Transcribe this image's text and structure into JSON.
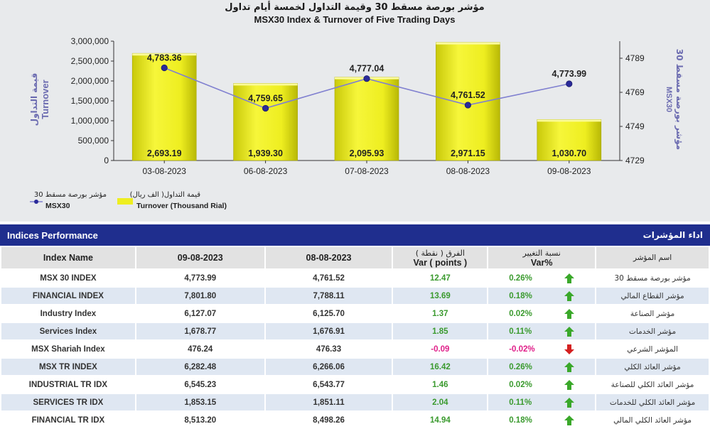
{
  "chart_data": {
    "type": "bar",
    "title_ar": "مؤشر بورصة مسقط 30 وقيمة التداول لخمسة أيام تداول",
    "title": "MSX30 Index & Turnover of Five Trading Days",
    "categories": [
      "03-08-2023",
      "06-08-2023",
      "07-08-2023",
      "08-08-2023",
      "09-08-2023"
    ],
    "series": [
      {
        "name": "Turnover (Thousand Rial)",
        "name_ar": "قيمة التداول( الف ريال)",
        "type": "bar",
        "axis": "left",
        "color": "#eeee20",
        "values": [
          2693.19,
          1939.3,
          2095.93,
          2971.15,
          1030.7
        ],
        "labels": [
          "2,693.19",
          "1,939.30",
          "2,095.93",
          "2,971.15",
          "1,030.70"
        ]
      },
      {
        "name": "MSX30",
        "name_ar": "مؤشر بورصة مسقط 30",
        "type": "line",
        "axis": "right",
        "color": "#8080d0",
        "values": [
          4783.36,
          4759.65,
          4777.04,
          4761.52,
          4773.99
        ],
        "labels": [
          "4,783.36",
          "4,759.65",
          "4,777.04",
          "4,761.52",
          "4,773.99"
        ]
      }
    ],
    "ylabel": "Turnover",
    "ylabel_ar": "قيمة التداول",
    "ylim": [
      0,
      3000000
    ],
    "yticks": [
      "0",
      "500,000",
      "1,000,000",
      "1,500,000",
      "2,000,000",
      "2,500,000",
      "3,000,000"
    ],
    "y2label": "MSX30",
    "y2label_ar": "مؤشر بورصة مسقط 30",
    "y2lim": [
      4729,
      4799
    ],
    "y2ticks": [
      "4729",
      "4749",
      "4769",
      "4789"
    ],
    "y2tick_values": [
      4729,
      4749,
      4769,
      4789
    ],
    "legend_placement": "bottom-left"
  },
  "table": {
    "title": "Indices Performance",
    "title_ar": "اداء المؤشرات",
    "headers": {
      "name": "Index Name",
      "d1": "09-08-2023",
      "d2": "08-08-2023",
      "var_ar": "الفرق ( نقطة )",
      "var_en": "Var ( points )",
      "pct_ar": "نسبة التغيير",
      "pct_en": "Var%",
      "name_ar": "اسم المؤشر"
    },
    "rows": [
      {
        "name": "MSX 30 INDEX",
        "d1": "4,773.99",
        "d2": "4,761.52",
        "var": "12.47",
        "pct": "0.26%",
        "dir": "up",
        "name_ar": "مؤشر بورصة مسقط 30"
      },
      {
        "name": "FINANCIAL INDEX",
        "d1": "7,801.80",
        "d2": "7,788.11",
        "var": "13.69",
        "pct": "0.18%",
        "dir": "up",
        "name_ar": "مؤشر القطاع المالي"
      },
      {
        "name": "Industry Index",
        "d1": "6,127.07",
        "d2": "6,125.70",
        "var": "1.37",
        "pct": "0.02%",
        "dir": "up",
        "name_ar": "مؤشر الصناعة"
      },
      {
        "name": "Services Index",
        "d1": "1,678.77",
        "d2": "1,676.91",
        "var": "1.85",
        "pct": "0.11%",
        "dir": "up",
        "name_ar": "مؤشر الخدمات"
      },
      {
        "name": "MSX Shariah Index",
        "d1": "476.24",
        "d2": "476.33",
        "var": "-0.09",
        "pct": "-0.02%",
        "dir": "down",
        "name_ar": "المؤشر الشرعي"
      },
      {
        "name": "MSX TR INDEX",
        "d1": "6,282.48",
        "d2": "6,266.06",
        "var": "16.42",
        "pct": "0.26%",
        "dir": "up",
        "name_ar": "مؤشر العائد الكلي"
      },
      {
        "name": "INDUSTRIAL TR IDX",
        "d1": "6,545.23",
        "d2": "6,543.77",
        "var": "1.46",
        "pct": "0.02%",
        "dir": "up",
        "name_ar": "مؤشر العائد الكلي للصناعة"
      },
      {
        "name": "SERVICES TR IDX",
        "d1": "1,853.15",
        "d2": "1,851.11",
        "var": "2.04",
        "pct": "0.11%",
        "dir": "up",
        "name_ar": "مؤشر العائد الكلي للخدمات"
      },
      {
        "name": "FINANCIAL TR IDX",
        "d1": "8,513.20",
        "d2": "8,498.26",
        "var": "14.94",
        "pct": "0.18%",
        "dir": "up",
        "name_ar": "مؤشر العائد الكلي المالي"
      }
    ],
    "colors": {
      "up": "#3aa82a",
      "down": "#d42020",
      "header": "#1f2e8e"
    }
  }
}
